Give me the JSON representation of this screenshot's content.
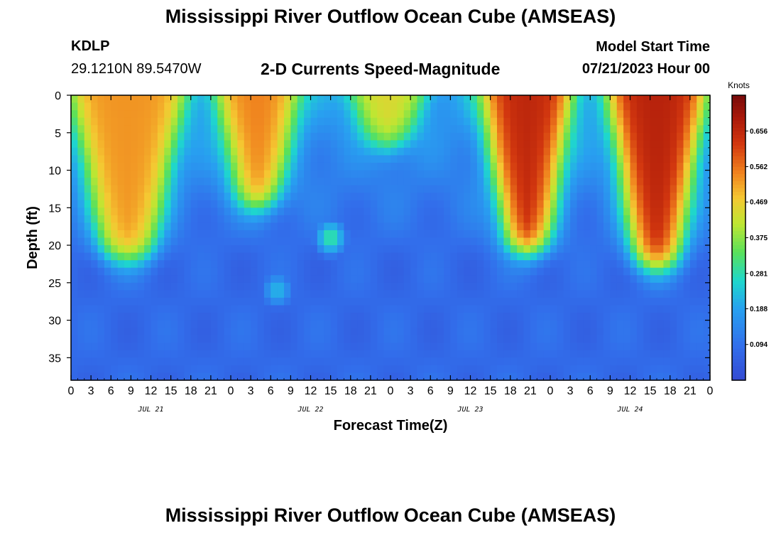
{
  "header": {
    "title": "Mississippi River Outflow Ocean Cube (AMSEAS)",
    "station_id": "KDLP",
    "station_coords": "29.1210N  89.5470W",
    "subtitle": "2-D Currents Speed-Magnitude",
    "model_start_label": "Model Start Time",
    "model_start_value": "07/21/2023 Hour 00"
  },
  "footer": {
    "title": "Mississippi River Outflow Ocean Cube (AMSEAS)"
  },
  "chart_data": {
    "type": "heatmap",
    "title": "2-D Currents Speed-Magnitude",
    "xlabel": "Forecast Time(Z)",
    "ylabel": "Depth (ft)",
    "x_tick_labels": [
      "0",
      "3",
      "6",
      "9",
      "12",
      "15",
      "18",
      "21",
      "0",
      "3",
      "6",
      "9",
      "12",
      "15",
      "18",
      "21",
      "0",
      "3",
      "6",
      "9",
      "12",
      "15",
      "18",
      "21",
      "0",
      "3",
      "6",
      "9",
      "12",
      "15",
      "18",
      "21",
      "0"
    ],
    "x_hours_range": [
      0,
      96
    ],
    "date_labels": [
      {
        "label": "JUL 21",
        "hour": 12
      },
      {
        "label": "JUL 22",
        "hour": 36
      },
      {
        "label": "JUL 23",
        "hour": 60
      },
      {
        "label": "JUL 24",
        "hour": 84
      }
    ],
    "y_ticks": [
      0,
      5,
      10,
      15,
      20,
      25,
      30,
      35
    ],
    "y_range": [
      0,
      38
    ],
    "y_inverted": true,
    "colorbar": {
      "unit": "Knots",
      "ticks": [
        "0.656",
        "0.562",
        "0.469",
        "0.375",
        "0.281",
        "0.188",
        "0.094"
      ],
      "tick_values": [
        0.656,
        0.562,
        0.469,
        0.375,
        0.281,
        0.188,
        0.094
      ],
      "range": [
        0.0,
        0.75
      ],
      "colormap": "jet-like (blue-cyan-green-yellow-orange-red-darkred)"
    },
    "features": [
      {
        "hour_start": 0,
        "hour_end": 17,
        "depth_surface_to": 22,
        "peak_speed": 0.53
      },
      {
        "hour_start": 22,
        "hour_end": 34,
        "depth_surface_to": 15,
        "peak_speed": 0.55
      },
      {
        "hour_start": 42,
        "hour_end": 53,
        "depth_surface_to": 7,
        "peak_speed": 0.45
      },
      {
        "hour_start": 62,
        "hour_end": 75,
        "depth_surface_to": 21,
        "peak_speed": 0.66
      },
      {
        "hour_start": 81,
        "hour_end": 95,
        "depth_surface_to": 23,
        "peak_speed": 0.67
      },
      {
        "hour": 39,
        "depth": 19,
        "peak_speed": 0.3
      },
      {
        "hour": 31,
        "depth": 26,
        "peak_speed": 0.22
      }
    ],
    "background_speed_upper_green": 0.17,
    "background_speed_deep_blue": 0.08
  }
}
